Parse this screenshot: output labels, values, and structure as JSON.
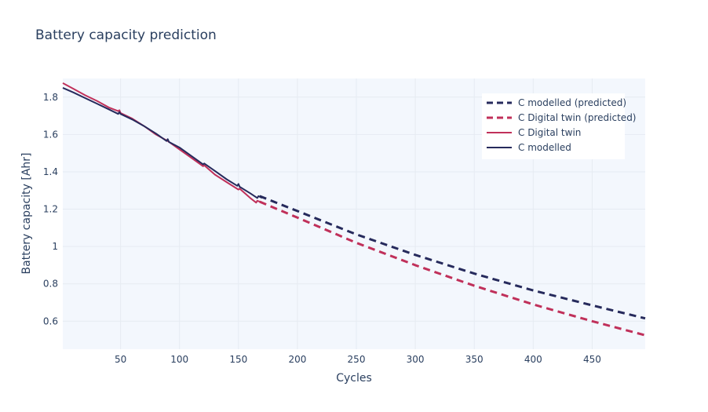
{
  "chart_data": {
    "type": "line",
    "title": "Battery capacity prediction",
    "xlabel": "Cycles",
    "ylabel": "Battery capacity [Ahr]",
    "xlim": [
      1,
      495
    ],
    "ylim": [
      0.45,
      1.9
    ],
    "x_ticks": [
      50,
      100,
      150,
      200,
      250,
      300,
      350,
      400,
      450
    ],
    "y_ticks": [
      0.6,
      0.8,
      1,
      1.2,
      1.4,
      1.6,
      1.8
    ],
    "grid": true,
    "legend_position": "top-right",
    "series": [
      {
        "name": "C modelled (predicted)",
        "color": "#262a5c",
        "dash": "dashed",
        "x": [
          168,
          200,
          250,
          300,
          350,
          400,
          450,
          495
        ],
        "y": [
          1.27,
          1.19,
          1.065,
          0.955,
          0.855,
          0.765,
          0.685,
          0.615
        ]
      },
      {
        "name": "C Digital twin (predicted)",
        "color": "#c0305a",
        "dash": "dashed",
        "x": [
          168,
          200,
          250,
          300,
          350,
          400,
          450,
          495
        ],
        "y": [
          1.24,
          1.155,
          1.02,
          0.9,
          0.79,
          0.69,
          0.6,
          0.525
        ]
      },
      {
        "name": "C Digital twin",
        "color": "#c0305a",
        "dash": "solid",
        "x": [
          1,
          10,
          20,
          30,
          40,
          48,
          49,
          50,
          60,
          70,
          80,
          90,
          100,
          110,
          120,
          121,
          130,
          140,
          150,
          151,
          160,
          165,
          166,
          170
        ],
        "y": [
          1.875,
          1.845,
          1.81,
          1.78,
          1.745,
          1.725,
          1.73,
          1.715,
          1.685,
          1.645,
          1.6,
          1.565,
          1.52,
          1.475,
          1.43,
          1.435,
          1.385,
          1.345,
          1.305,
          1.31,
          1.26,
          1.235,
          1.245,
          1.235
        ]
      },
      {
        "name": "C modelled",
        "color": "#262a5c",
        "dash": "solid",
        "x": [
          1,
          10,
          20,
          30,
          40,
          48,
          49,
          50,
          60,
          70,
          80,
          89,
          90,
          91,
          100,
          110,
          120,
          121,
          130,
          140,
          149,
          150,
          151,
          160,
          166,
          167,
          170
        ],
        "y": [
          1.85,
          1.825,
          1.795,
          1.765,
          1.735,
          1.71,
          1.72,
          1.71,
          1.68,
          1.645,
          1.605,
          1.565,
          1.575,
          1.56,
          1.53,
          1.485,
          1.44,
          1.445,
          1.405,
          1.36,
          1.325,
          1.335,
          1.32,
          1.285,
          1.26,
          1.27,
          1.26
        ]
      }
    ]
  }
}
